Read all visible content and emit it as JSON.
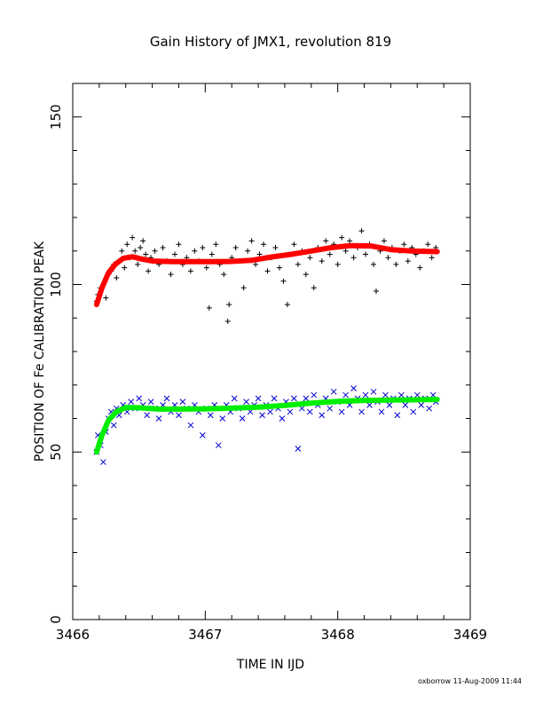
{
  "chart_data": {
    "type": "scatter",
    "title": "Gain History of JMX1, revolution 819",
    "xlabel": "TIME IN IJD",
    "ylabel": "POSITION OF Fe CALIBRATION PEAK",
    "xlim": [
      3466,
      3469
    ],
    "ylim": [
      0,
      160
    ],
    "x_ticks": [
      3466,
      3467,
      3468,
      3469
    ],
    "y_ticks": [
      0,
      50,
      100,
      150
    ],
    "x_tick_labels": [
      "3466",
      "3467",
      "3468",
      "3469"
    ],
    "y_tick_labels": [
      "0",
      "50",
      "100",
      "150"
    ],
    "grid": false,
    "legend": "none",
    "footer": "oxborrow 11-Aug-2009 11:44",
    "series": [
      {
        "marker": "plus",
        "color": "#000000",
        "points": [
          [
            3466.18,
            95
          ],
          [
            3466.19,
            97
          ],
          [
            3466.21,
            99
          ],
          [
            3466.23,
            100
          ],
          [
            3466.25,
            96
          ],
          [
            3466.27,
            103
          ],
          [
            3466.29,
            104
          ],
          [
            3466.31,
            106
          ],
          [
            3466.33,
            102
          ],
          [
            3466.35,
            107
          ],
          [
            3466.37,
            110
          ],
          [
            3466.39,
            105
          ],
          [
            3466.41,
            112
          ],
          [
            3466.43,
            108
          ],
          [
            3466.45,
            114
          ],
          [
            3466.47,
            110
          ],
          [
            3466.49,
            106
          ],
          [
            3466.51,
            111
          ],
          [
            3466.53,
            113
          ],
          [
            3466.55,
            109
          ],
          [
            3466.57,
            104
          ],
          [
            3466.59,
            108
          ],
          [
            3466.62,
            110
          ],
          [
            3466.65,
            106
          ],
          [
            3466.68,
            111
          ],
          [
            3466.71,
            107
          ],
          [
            3466.74,
            103
          ],
          [
            3466.77,
            109
          ],
          [
            3466.8,
            112
          ],
          [
            3466.83,
            106
          ],
          [
            3466.86,
            108
          ],
          [
            3466.89,
            104
          ],
          [
            3466.92,
            110
          ],
          [
            3466.95,
            107
          ],
          [
            3466.98,
            111
          ],
          [
            3467.01,
            105
          ],
          [
            3467.03,
            93
          ],
          [
            3467.05,
            109
          ],
          [
            3467.08,
            112
          ],
          [
            3467.11,
            106
          ],
          [
            3467.14,
            103
          ],
          [
            3467.17,
            89
          ],
          [
            3467.18,
            94
          ],
          [
            3467.2,
            108
          ],
          [
            3467.23,
            111
          ],
          [
            3467.26,
            107
          ],
          [
            3467.29,
            99
          ],
          [
            3467.32,
            110
          ],
          [
            3467.35,
            113
          ],
          [
            3467.38,
            106
          ],
          [
            3467.41,
            109
          ],
          [
            3467.44,
            112
          ],
          [
            3467.47,
            104
          ],
          [
            3467.5,
            108
          ],
          [
            3467.53,
            111
          ],
          [
            3467.56,
            105
          ],
          [
            3467.59,
            101
          ],
          [
            3467.62,
            94
          ],
          [
            3467.64,
            109
          ],
          [
            3467.67,
            112
          ],
          [
            3467.7,
            106
          ],
          [
            3467.73,
            110
          ],
          [
            3467.76,
            103
          ],
          [
            3467.79,
            108
          ],
          [
            3467.82,
            99
          ],
          [
            3467.85,
            111
          ],
          [
            3467.88,
            107
          ],
          [
            3467.91,
            113
          ],
          [
            3467.94,
            109
          ],
          [
            3467.97,
            112
          ],
          [
            3468.0,
            106
          ],
          [
            3468.03,
            114
          ],
          [
            3468.06,
            110
          ],
          [
            3468.09,
            113
          ],
          [
            3468.12,
            108
          ],
          [
            3468.15,
            111
          ],
          [
            3468.18,
            116
          ],
          [
            3468.21,
            109
          ],
          [
            3468.24,
            112
          ],
          [
            3468.27,
            106
          ],
          [
            3468.29,
            98
          ],
          [
            3468.32,
            110
          ],
          [
            3468.35,
            113
          ],
          [
            3468.38,
            108
          ],
          [
            3468.41,
            111
          ],
          [
            3468.44,
            106
          ],
          [
            3468.47,
            110
          ],
          [
            3468.5,
            112
          ],
          [
            3468.53,
            107
          ],
          [
            3468.56,
            111
          ],
          [
            3468.59,
            109
          ],
          [
            3468.62,
            105
          ],
          [
            3468.65,
            110
          ],
          [
            3468.68,
            112
          ],
          [
            3468.71,
            108
          ],
          [
            3468.74,
            111
          ]
        ]
      },
      {
        "marker": "line",
        "color": "#ff0000",
        "points": [
          [
            3466.18,
            94
          ],
          [
            3466.22,
            99
          ],
          [
            3466.27,
            103.5
          ],
          [
            3466.32,
            106
          ],
          [
            3466.38,
            107.8
          ],
          [
            3466.45,
            108.3
          ],
          [
            3466.52,
            107.6
          ],
          [
            3466.6,
            107
          ],
          [
            3466.75,
            106.8
          ],
          [
            3466.9,
            106.8
          ],
          [
            3467.05,
            106.8
          ],
          [
            3467.2,
            106.9
          ],
          [
            3467.35,
            107.2
          ],
          [
            3467.5,
            108.2
          ],
          [
            3467.65,
            109
          ],
          [
            3467.8,
            110
          ],
          [
            3467.95,
            111
          ],
          [
            3468.1,
            111.6
          ],
          [
            3468.25,
            111.5
          ],
          [
            3468.4,
            110.4
          ],
          [
            3468.55,
            110
          ],
          [
            3468.75,
            109.8
          ]
        ]
      },
      {
        "marker": "x",
        "color": "#0000cc",
        "points": [
          [
            3466.18,
            50
          ],
          [
            3466.19,
            55
          ],
          [
            3466.21,
            52
          ],
          [
            3466.23,
            47
          ],
          [
            3466.25,
            56
          ],
          [
            3466.27,
            60
          ],
          [
            3466.29,
            62
          ],
          [
            3466.31,
            58
          ],
          [
            3466.33,
            63
          ],
          [
            3466.35,
            61
          ],
          [
            3466.38,
            64
          ],
          [
            3466.41,
            62
          ],
          [
            3466.44,
            65
          ],
          [
            3466.47,
            63
          ],
          [
            3466.5,
            66
          ],
          [
            3466.53,
            64
          ],
          [
            3466.56,
            61
          ],
          [
            3466.59,
            65
          ],
          [
            3466.62,
            63
          ],
          [
            3466.65,
            60
          ],
          [
            3466.68,
            64
          ],
          [
            3466.71,
            66
          ],
          [
            3466.74,
            62
          ],
          [
            3466.77,
            64
          ],
          [
            3466.8,
            61
          ],
          [
            3466.83,
            65
          ],
          [
            3466.86,
            63
          ],
          [
            3466.89,
            58
          ],
          [
            3466.92,
            64
          ],
          [
            3466.95,
            62
          ],
          [
            3466.98,
            55
          ],
          [
            3467.01,
            63
          ],
          [
            3467.04,
            61
          ],
          [
            3467.07,
            64
          ],
          [
            3467.1,
            52
          ],
          [
            3467.13,
            60
          ],
          [
            3467.16,
            64
          ],
          [
            3467.19,
            62
          ],
          [
            3467.22,
            66
          ],
          [
            3467.25,
            63
          ],
          [
            3467.28,
            60
          ],
          [
            3467.31,
            65
          ],
          [
            3467.34,
            62
          ],
          [
            3467.37,
            64
          ],
          [
            3467.4,
            66
          ],
          [
            3467.43,
            61
          ],
          [
            3467.46,
            64
          ],
          [
            3467.49,
            62
          ],
          [
            3467.52,
            66
          ],
          [
            3467.55,
            63
          ],
          [
            3467.58,
            60
          ],
          [
            3467.61,
            65
          ],
          [
            3467.64,
            62
          ],
          [
            3467.67,
            66
          ],
          [
            3467.7,
            51
          ],
          [
            3467.73,
            63
          ],
          [
            3467.76,
            66
          ],
          [
            3467.79,
            62
          ],
          [
            3467.82,
            67
          ],
          [
            3467.85,
            64
          ],
          [
            3467.88,
            61
          ],
          [
            3467.91,
            66
          ],
          [
            3467.94,
            63
          ],
          [
            3467.97,
            68
          ],
          [
            3468.0,
            65
          ],
          [
            3468.03,
            62
          ],
          [
            3468.06,
            67
          ],
          [
            3468.09,
            64
          ],
          [
            3468.12,
            69
          ],
          [
            3468.15,
            66
          ],
          [
            3468.18,
            62
          ],
          [
            3468.21,
            67
          ],
          [
            3468.24,
            64
          ],
          [
            3468.27,
            68
          ],
          [
            3468.3,
            65
          ],
          [
            3468.33,
            62
          ],
          [
            3468.36,
            67
          ],
          [
            3468.39,
            64
          ],
          [
            3468.42,
            66
          ],
          [
            3468.45,
            61
          ],
          [
            3468.48,
            67
          ],
          [
            3468.51,
            64
          ],
          [
            3468.54,
            66
          ],
          [
            3468.57,
            62
          ],
          [
            3468.6,
            67
          ],
          [
            3468.63,
            64
          ],
          [
            3468.66,
            66
          ],
          [
            3468.69,
            63
          ],
          [
            3468.72,
            67
          ],
          [
            3468.74,
            65
          ]
        ]
      },
      {
        "marker": "line",
        "color": "#00ee00",
        "points": [
          [
            3466.18,
            50
          ],
          [
            3466.22,
            55
          ],
          [
            3466.27,
            59.5
          ],
          [
            3466.33,
            62
          ],
          [
            3466.4,
            63.3
          ],
          [
            3466.5,
            63.2
          ],
          [
            3466.65,
            62.8
          ],
          [
            3466.8,
            62.8
          ],
          [
            3467.0,
            62.9
          ],
          [
            3467.2,
            63.1
          ],
          [
            3467.4,
            63.4
          ],
          [
            3467.6,
            63.9
          ],
          [
            3467.8,
            64.6
          ],
          [
            3468.0,
            65.1
          ],
          [
            3468.2,
            65.4
          ],
          [
            3468.4,
            65.5
          ],
          [
            3468.6,
            65.6
          ],
          [
            3468.75,
            65.7
          ]
        ]
      }
    ]
  }
}
